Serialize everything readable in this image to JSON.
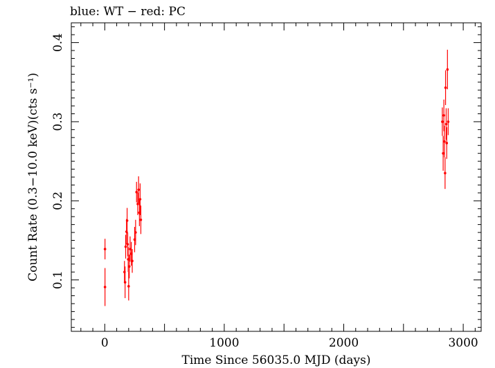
{
  "chart_data": {
    "type": "scatter",
    "title": "blue: WT − red: PC",
    "xlabel": "Time Since 56035.0 MJD (days)",
    "ylabel": "Count Rate (0.3−10.0 keV)(cts s⁻¹)",
    "xlim": [
      -280,
      3150
    ],
    "ylim": [
      0.035,
      0.425
    ],
    "x_ticks": [
      0,
      1000,
      2000,
      3000
    ],
    "x_tick_labels": [
      "0",
      "1000",
      "2000",
      "3000"
    ],
    "y_ticks": [
      0.1,
      0.2,
      0.3,
      0.4
    ],
    "y_tick_labels": [
      "0.1",
      "0.2",
      "0.3",
      "0.4"
    ],
    "grid": false,
    "series": [
      {
        "color": "#ff0000",
        "points": [
          {
            "x": 2,
            "y": 0.139,
            "err": 0.013
          },
          {
            "x": 2,
            "y": 0.091,
            "err": 0.024
          },
          {
            "x": 165,
            "y": 0.11,
            "err": 0.014
          },
          {
            "x": 170,
            "y": 0.097,
            "err": 0.02
          },
          {
            "x": 175,
            "y": 0.142,
            "err": 0.015
          },
          {
            "x": 182,
            "y": 0.161,
            "err": 0.016
          },
          {
            "x": 187,
            "y": 0.175,
            "err": 0.016
          },
          {
            "x": 192,
            "y": 0.145,
            "err": 0.015
          },
          {
            "x": 196,
            "y": 0.126,
            "err": 0.016
          },
          {
            "x": 200,
            "y": 0.092,
            "err": 0.018
          },
          {
            "x": 205,
            "y": 0.117,
            "err": 0.015
          },
          {
            "x": 212,
            "y": 0.139,
            "err": 0.016
          },
          {
            "x": 222,
            "y": 0.133,
            "err": 0.015
          },
          {
            "x": 230,
            "y": 0.124,
            "err": 0.015
          },
          {
            "x": 250,
            "y": 0.151,
            "err": 0.016
          },
          {
            "x": 258,
            "y": 0.16,
            "err": 0.016
          },
          {
            "x": 266,
            "y": 0.211,
            "err": 0.013
          },
          {
            "x": 276,
            "y": 0.196,
            "err": 0.014
          },
          {
            "x": 283,
            "y": 0.214,
            "err": 0.017
          },
          {
            "x": 290,
            "y": 0.185,
            "err": 0.017
          },
          {
            "x": 296,
            "y": 0.202,
            "err": 0.02
          },
          {
            "x": 302,
            "y": 0.176,
            "err": 0.018
          },
          {
            "x": 2825,
            "y": 0.3,
            "err": 0.018
          },
          {
            "x": 2832,
            "y": 0.26,
            "err": 0.022
          },
          {
            "x": 2838,
            "y": 0.308,
            "err": 0.02
          },
          {
            "x": 2843,
            "y": 0.275,
            "err": 0.02
          },
          {
            "x": 2848,
            "y": 0.235,
            "err": 0.02
          },
          {
            "x": 2852,
            "y": 0.343,
            "err": 0.022
          },
          {
            "x": 2857,
            "y": 0.297,
            "err": 0.02
          },
          {
            "x": 2862,
            "y": 0.273,
            "err": 0.02
          },
          {
            "x": 2868,
            "y": 0.366,
            "err": 0.025
          },
          {
            "x": 2874,
            "y": 0.3,
            "err": 0.017
          }
        ]
      }
    ]
  }
}
